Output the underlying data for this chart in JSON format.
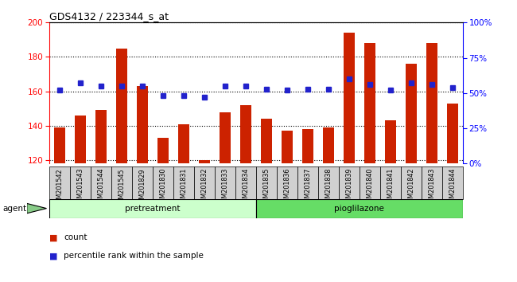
{
  "title": "GDS4132 / 223344_s_at",
  "samples": [
    "GSM201542",
    "GSM201543",
    "GSM201544",
    "GSM201545",
    "GSM201829",
    "GSM201830",
    "GSM201831",
    "GSM201832",
    "GSM201833",
    "GSM201834",
    "GSM201835",
    "GSM201836",
    "GSM201837",
    "GSM201838",
    "GSM201839",
    "GSM201840",
    "GSM201841",
    "GSM201842",
    "GSM201843",
    "GSM201844"
  ],
  "counts": [
    139,
    146,
    149,
    185,
    163,
    133,
    141,
    120,
    148,
    152,
    144,
    137,
    138,
    139,
    194,
    188,
    143,
    176,
    188,
    153
  ],
  "percentiles": [
    52,
    57,
    55,
    55,
    55,
    48,
    48,
    47,
    55,
    55,
    53,
    52,
    53,
    53,
    60,
    56,
    52,
    57,
    56,
    54
  ],
  "bar_color": "#cc2200",
  "dot_color": "#2222cc",
  "ylim_left": [
    118,
    200
  ],
  "ylim_right": [
    0,
    100
  ],
  "yticks_left": [
    120,
    140,
    160,
    180,
    200
  ],
  "yticks_right": [
    0,
    25,
    50,
    75,
    100
  ],
  "groups": [
    {
      "label": "pretreatment",
      "start": 0,
      "end": 9,
      "color": "#ccffcc"
    },
    {
      "label": "pioglilazone",
      "start": 10,
      "end": 19,
      "color": "#66dd66"
    }
  ],
  "agent_label": "agent",
  "legend_bar_label": "count",
  "legend_dot_label": "percentile rank within the sample",
  "tick_bg_color": "#d0d0d0",
  "plot_bg_color": "#ffffff"
}
